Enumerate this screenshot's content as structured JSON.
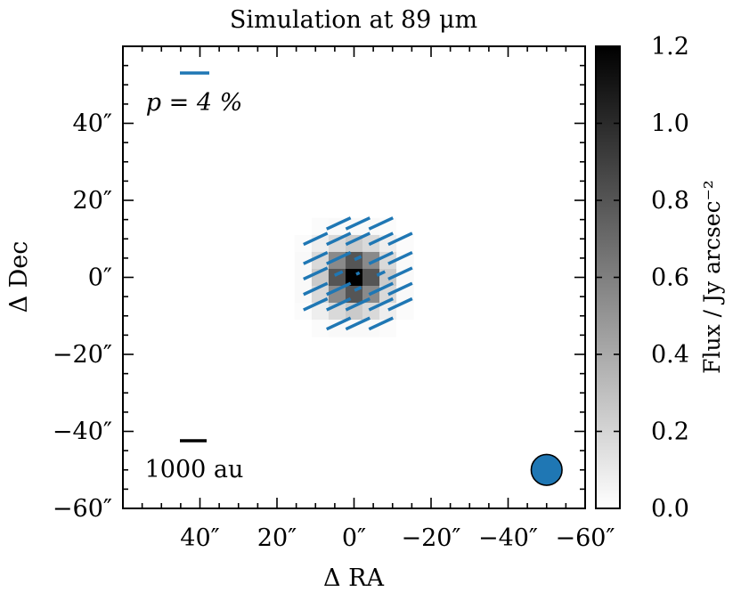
{
  "chart_data": {
    "type": "heatmap",
    "title": "Simulation at 89 μm",
    "xlabel": "Δ RA",
    "ylabel": "Δ Dec",
    "xlim": [
      60,
      -60
    ],
    "ylim": [
      -60,
      60
    ],
    "x_ticks": [
      {
        "value": 40,
        "label": "40″"
      },
      {
        "value": 20,
        "label": "20″"
      },
      {
        "value": 0,
        "label": "0″"
      },
      {
        "value": -20,
        "label": "−20″"
      },
      {
        "value": -40,
        "label": "−40″"
      },
      {
        "value": -60,
        "label": "−60″"
      }
    ],
    "y_ticks": [
      {
        "value": 40,
        "label": "40″"
      },
      {
        "value": 20,
        "label": "20″"
      },
      {
        "value": 0,
        "label": "0″"
      },
      {
        "value": -20,
        "label": "−20″"
      },
      {
        "value": -40,
        "label": "−40″"
      },
      {
        "value": -60,
        "label": "−60″"
      }
    ],
    "colorbar": {
      "label": "Flux / Jy arcsec⁻²",
      "range": [
        0.0,
        1.2
      ],
      "ticks": [
        "0.0",
        "0.2",
        "0.4",
        "0.6",
        "0.8",
        "1.0",
        "1.2"
      ],
      "colormap": "Greys"
    },
    "image": {
      "pixel_size_arcsec": 4.4,
      "center": [
        0,
        0
      ],
      "flux": [
        [
          0.0,
          0.02,
          0.03,
          0.03,
          0.03,
          0.02,
          0.0
        ],
        [
          0.02,
          0.08,
          0.18,
          0.25,
          0.18,
          0.08,
          0.02
        ],
        [
          0.03,
          0.18,
          0.55,
          0.8,
          0.55,
          0.18,
          0.03
        ],
        [
          0.03,
          0.25,
          0.8,
          1.2,
          0.8,
          0.25,
          0.03
        ],
        [
          0.03,
          0.18,
          0.55,
          0.8,
          0.55,
          0.18,
          0.03
        ],
        [
          0.02,
          0.08,
          0.18,
          0.25,
          0.18,
          0.08,
          0.02
        ],
        [
          0.0,
          0.02,
          0.03,
          0.03,
          0.03,
          0.02,
          0.0
        ]
      ]
    },
    "polarization_vectors": {
      "color": "#1f77b4",
      "angle_deg": 25,
      "reference": {
        "label": "p = 4 %",
        "p_percent": 4
      },
      "vectors": [
        {
          "ra": 4,
          "dec": 14,
          "p": 3.6
        },
        {
          "ra": -1,
          "dec": 14,
          "p": 3.6
        },
        {
          "ra": -7,
          "dec": 14,
          "p": 3.6
        },
        {
          "ra": 10,
          "dec": 10,
          "p": 3.6
        },
        {
          "ra": 4,
          "dec": 10,
          "p": 3.6
        },
        {
          "ra": -1,
          "dec": 10,
          "p": 3.6
        },
        {
          "ra": -7,
          "dec": 10,
          "p": 3.6
        },
        {
          "ra": -12,
          "dec": 10,
          "p": 3.6
        },
        {
          "ra": 10,
          "dec": 5,
          "p": 3.6
        },
        {
          "ra": 4,
          "dec": 5,
          "p": 3.6
        },
        {
          "ra": -1,
          "dec": 5,
          "p": 1.0
        },
        {
          "ra": -7,
          "dec": 5,
          "p": 3.6
        },
        {
          "ra": -12,
          "dec": 5,
          "p": 3.6
        },
        {
          "ra": 10,
          "dec": 1,
          "p": 3.6
        },
        {
          "ra": 4,
          "dec": 1,
          "p": 1.2
        },
        {
          "ra": -1,
          "dec": 1,
          "p": 0.5
        },
        {
          "ra": -7,
          "dec": 1,
          "p": 1.2
        },
        {
          "ra": -12,
          "dec": 1,
          "p": 3.6
        },
        {
          "ra": 10,
          "dec": -3,
          "p": 3.6
        },
        {
          "ra": 4,
          "dec": -3,
          "p": 3.6
        },
        {
          "ra": -1,
          "dec": -3,
          "p": 1.0
        },
        {
          "ra": -7,
          "dec": -3,
          "p": 3.6
        },
        {
          "ra": -12,
          "dec": -3,
          "p": 3.6
        },
        {
          "ra": 10,
          "dec": -7,
          "p": 3.6
        },
        {
          "ra": 4,
          "dec": -7,
          "p": 3.6
        },
        {
          "ra": -1,
          "dec": -7,
          "p": 3.6
        },
        {
          "ra": -7,
          "dec": -7,
          "p": 3.6
        },
        {
          "ra": -12,
          "dec": -7,
          "p": 3.6
        },
        {
          "ra": 4,
          "dec": -12,
          "p": 3.6
        },
        {
          "ra": -1,
          "dec": -12,
          "p": 3.6
        },
        {
          "ra": -7,
          "dec": -12,
          "p": 3.6
        }
      ]
    },
    "scalebar": {
      "label": "1000 au",
      "length_arcsec": 7
    },
    "beam": {
      "ra": -50,
      "dec": -50,
      "diameter_arcsec": 8,
      "color": "#1f77b4"
    }
  }
}
